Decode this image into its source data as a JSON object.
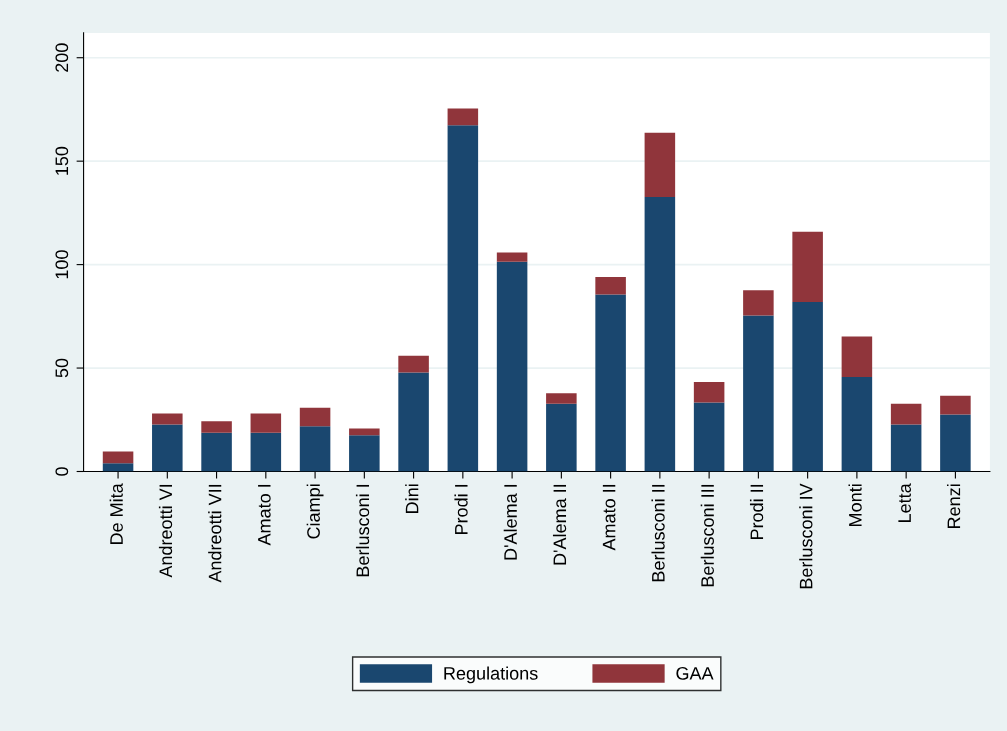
{
  "chart_data": {
    "type": "bar",
    "stacked": true,
    "categories": [
      "De Mita",
      "Andreotti VI",
      "Andreotti VII",
      "Amato I",
      "Ciampi",
      "Berlusconi I",
      "Dini",
      "Prodi I",
      "D'Alema I",
      "D'Alema II",
      "Amato II",
      "Berlusconi II",
      "Berlusconi III",
      "Prodi II",
      "Berlusconi IV",
      "Monti",
      "Letta",
      "Renzi"
    ],
    "series": [
      {
        "name": "Regulations",
        "color": "#1a476f",
        "values": [
          4,
          22.7,
          18.7,
          18.7,
          21.9,
          17.5,
          47.9,
          167.4,
          101.4,
          32.8,
          85.5,
          132.7,
          33.3,
          75.4,
          81.9,
          45.7,
          22.7,
          27.6
        ]
      },
      {
        "name": "GAA",
        "color": "#90353b",
        "values": [
          5.7,
          5.3,
          5.6,
          9.3,
          8.9,
          3.3,
          8,
          8,
          4.4,
          5,
          8.5,
          31,
          10,
          12.2,
          34,
          19.5,
          10,
          9
        ]
      }
    ],
    "ylim": [
      0,
      212
    ],
    "yticks": [
      0,
      50,
      100,
      150,
      200
    ],
    "grid": "y",
    "legend": "bottom"
  }
}
